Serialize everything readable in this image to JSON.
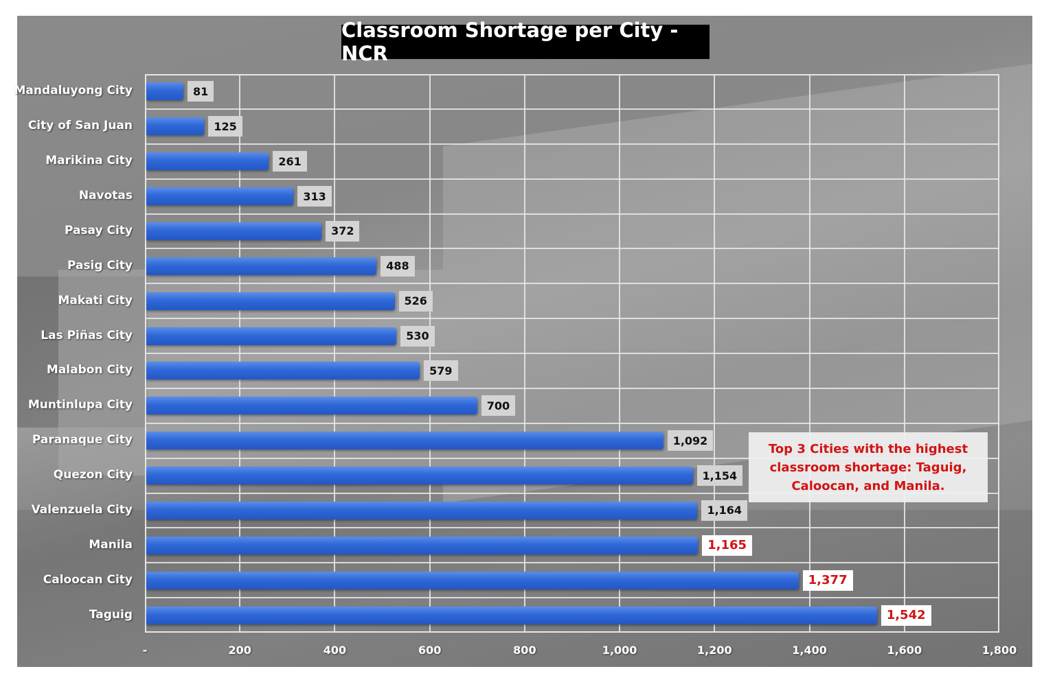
{
  "chart_data": {
    "type": "bar",
    "orientation": "horizontal",
    "title": "Classroom Shortage per City - NCR",
    "xlabel": "",
    "ylabel": "",
    "xlim": [
      0,
      1800
    ],
    "grid": true,
    "x_ticks": [
      "-",
      "200",
      "400",
      "600",
      "800",
      "1,000",
      "1,200",
      "1,400",
      "1,600",
      "1,800"
    ],
    "categories": [
      "Mandaluyong City",
      "City of San Juan",
      "Marikina City",
      "Navotas",
      "Pasay City",
      "Pasig City",
      "Makati City",
      "Las Piñas City",
      "Malabon City",
      "Muntinlupa City",
      "Paranaque City",
      "Quezon City",
      "Valenzuela City",
      "Manila",
      "Caloocan City",
      "Taguig"
    ],
    "values": [
      81,
      125,
      261,
      313,
      372,
      488,
      526,
      530,
      579,
      700,
      1092,
      1154,
      1164,
      1165,
      1377,
      1542
    ],
    "value_labels": [
      "81",
      "125",
      "261",
      "313",
      "372",
      "488",
      "526",
      "530",
      "579",
      "700",
      "1,092",
      "1,154",
      "1,164",
      "1,165",
      "1,377",
      "1,542"
    ],
    "highlighted": [
      "Manila",
      "Caloocan City",
      "Taguig"
    ],
    "annotation": "Top 3 Cities with the highest classroom shortage: Taguig, Caloocan, and Manila.",
    "bar_color": "#2f68d8",
    "highlight_color": "#d21414"
  }
}
